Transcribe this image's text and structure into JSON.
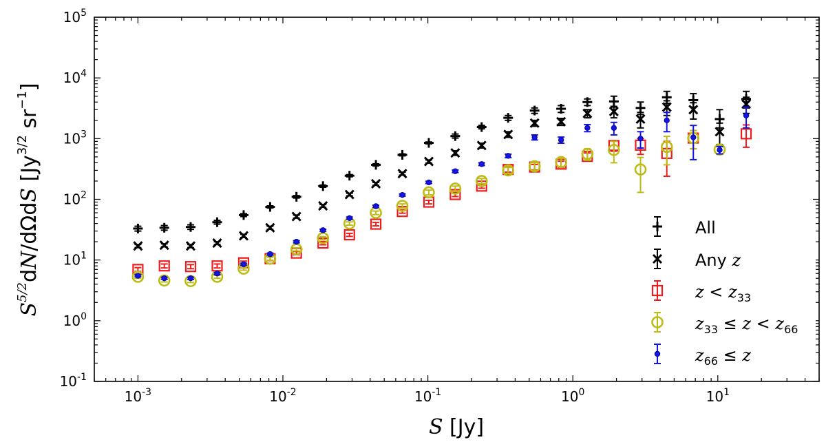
{
  "chart_data": {
    "type": "scatter",
    "x_scale": "log",
    "y_scale": "log",
    "xlim": [
      0.0005,
      50
    ],
    "ylim": [
      0.1,
      100000
    ],
    "xlabel": "S [Jy]",
    "ylabel": "S^{5/2}dN/dΩdS [Jy^{3/2} sr^{-1}]",
    "x_ticks": [
      {
        "value": 0.001,
        "base": "10",
        "exp": "-3"
      },
      {
        "value": 0.01,
        "base": "10",
        "exp": "-2"
      },
      {
        "value": 0.1,
        "base": "10",
        "exp": "-1"
      },
      {
        "value": 1,
        "base": "10",
        "exp": "0"
      },
      {
        "value": 10,
        "base": "10",
        "exp": "1"
      }
    ],
    "y_ticks": [
      {
        "value": 0.1,
        "base": "10",
        "exp": "-1"
      },
      {
        "value": 1,
        "base": "10",
        "exp": "0"
      },
      {
        "value": 10,
        "base": "10",
        "exp": "1"
      },
      {
        "value": 100,
        "base": "10",
        "exp": "2"
      },
      {
        "value": 1000,
        "base": "10",
        "exp": "3"
      },
      {
        "value": 10000,
        "base": "10",
        "exp": "4"
      },
      {
        "value": 100000,
        "base": "10",
        "exp": "5"
      }
    ],
    "legend_position": "lower-right",
    "x": [
      0.001,
      0.00152,
      0.00231,
      0.00352,
      0.00536,
      0.00816,
      0.0124,
      0.0189,
      0.0288,
      0.0438,
      0.0667,
      0.1015,
      0.1545,
      0.235,
      0.358,
      0.545,
      0.83,
      1.26,
      1.92,
      2.93,
      4.45,
      6.78,
      10.3,
      15.7
    ],
    "series": [
      {
        "name": "All",
        "marker": "plus",
        "color": "#000000",
        "values": [
          33,
          34,
          35,
          42,
          55,
          75,
          110,
          165,
          245,
          370,
          540,
          850,
          1100,
          1550,
          2200,
          2900,
          3100,
          4000,
          4100,
          3200,
          4800,
          4300,
          2100,
          4500
        ],
        "err_low": [
          30,
          31,
          32,
          39,
          52,
          72,
          105,
          158,
          235,
          355,
          520,
          820,
          1020,
          1450,
          2000,
          2600,
          2700,
          3500,
          3300,
          2500,
          3800,
          3300,
          1500,
          3200
        ],
        "err_high": [
          36,
          37,
          38,
          45,
          58,
          78,
          115,
          172,
          255,
          385,
          560,
          880,
          1190,
          1650,
          2400,
          3200,
          3500,
          4500,
          5000,
          4000,
          6000,
          5500,
          3000,
          6000
        ]
      },
      {
        "name": "Any z",
        "marker": "x",
        "color": "#000000",
        "values": [
          17,
          17.5,
          17,
          19,
          25,
          34,
          52,
          78,
          120,
          180,
          265,
          420,
          580,
          770,
          1170,
          1800,
          1900,
          2600,
          2800,
          2100,
          3300,
          3000,
          1300,
          3700
        ],
        "err_low": [
          16,
          16.5,
          16,
          18,
          23.5,
          32,
          49,
          74,
          114,
          170,
          250,
          395,
          530,
          700,
          1050,
          1600,
          1650,
          2200,
          2200,
          1500,
          2400,
          2100,
          800,
          2600
        ],
        "err_high": [
          18,
          18.5,
          18,
          20,
          26.5,
          36,
          55,
          82,
          126,
          190,
          280,
          445,
          630,
          840,
          1300,
          2000,
          2150,
          3000,
          3400,
          2700,
          4200,
          3900,
          1800,
          4800
        ]
      },
      {
        "name": "z < z33",
        "marker": "square",
        "color": "#ee1c1c",
        "values": [
          7,
          8,
          7.8,
          8,
          9,
          10.5,
          13,
          19,
          26,
          39,
          63,
          90,
          120,
          165,
          310,
          340,
          380,
          510,
          770,
          780,
          570,
          1020,
          0,
          1200
        ],
        "err_low": [
          6.5,
          7.4,
          7.2,
          7.4,
          8.4,
          9.8,
          12.2,
          17.8,
          24.5,
          36.5,
          59,
          84,
          111,
          152,
          280,
          305,
          335,
          440,
          620,
          550,
          240,
          680,
          0,
          720
        ],
        "err_high": [
          7.5,
          8.6,
          8.4,
          8.6,
          9.6,
          11.2,
          13.8,
          20.2,
          27.5,
          41.5,
          67,
          96,
          129,
          178,
          340,
          375,
          425,
          580,
          920,
          1010,
          900,
          1360,
          0,
          1680
        ]
      },
      {
        "name": "z33 ≤ z < z66",
        "marker": "circle",
        "color": "#bcbc14",
        "values": [
          5.3,
          4.6,
          4.5,
          5.3,
          7.2,
          10.5,
          15,
          23,
          40,
          60,
          78,
          130,
          150,
          200,
          300,
          350,
          410,
          560,
          650,
          310,
          730,
          1020,
          660,
          0
        ],
        "err_low": [
          5,
          4.35,
          4.25,
          5,
          6.8,
          9.9,
          14.1,
          21.7,
          37.5,
          56,
          72,
          118,
          135,
          180,
          265,
          300,
          345,
          440,
          400,
          130,
          370,
          680,
          550,
          0
        ],
        "err_high": [
          5.6,
          4.85,
          4.75,
          5.6,
          7.6,
          11.1,
          15.9,
          24.3,
          42.5,
          64,
          84,
          142,
          165,
          220,
          335,
          400,
          475,
          680,
          900,
          490,
          1090,
          1360,
          770,
          0
        ]
      },
      {
        "name": "z66 ≤ z",
        "marker": "small-circle",
        "color": "#1414e6",
        "values": [
          5.5,
          5,
          5,
          6,
          8.5,
          12.5,
          20,
          31,
          49,
          77,
          118,
          190,
          290,
          380,
          520,
          1050,
          950,
          1500,
          1500,
          1000,
          2000,
          1050,
          650,
          2400
        ],
        "err_low": [
          5.3,
          4.8,
          4.8,
          5.75,
          8.15,
          12,
          19.2,
          29.8,
          47,
          74,
          113,
          182,
          276,
          360,
          485,
          950,
          840,
          1300,
          1150,
          700,
          1300,
          450,
          560,
          1500
        ],
        "err_high": [
          5.7,
          5.2,
          5.2,
          6.25,
          8.85,
          13,
          20.8,
          32.2,
          51,
          80,
          123,
          198,
          304,
          400,
          555,
          1150,
          1060,
          1700,
          1850,
          1300,
          2700,
          1650,
          740,
          3300
        ]
      }
    ],
    "legend": [
      {
        "label": "All"
      },
      {
        "label": "Any z"
      },
      {
        "label": "z < z33"
      },
      {
        "label": "z33 ≤ z < z66"
      },
      {
        "label": "z66 ≤ z"
      }
    ]
  }
}
